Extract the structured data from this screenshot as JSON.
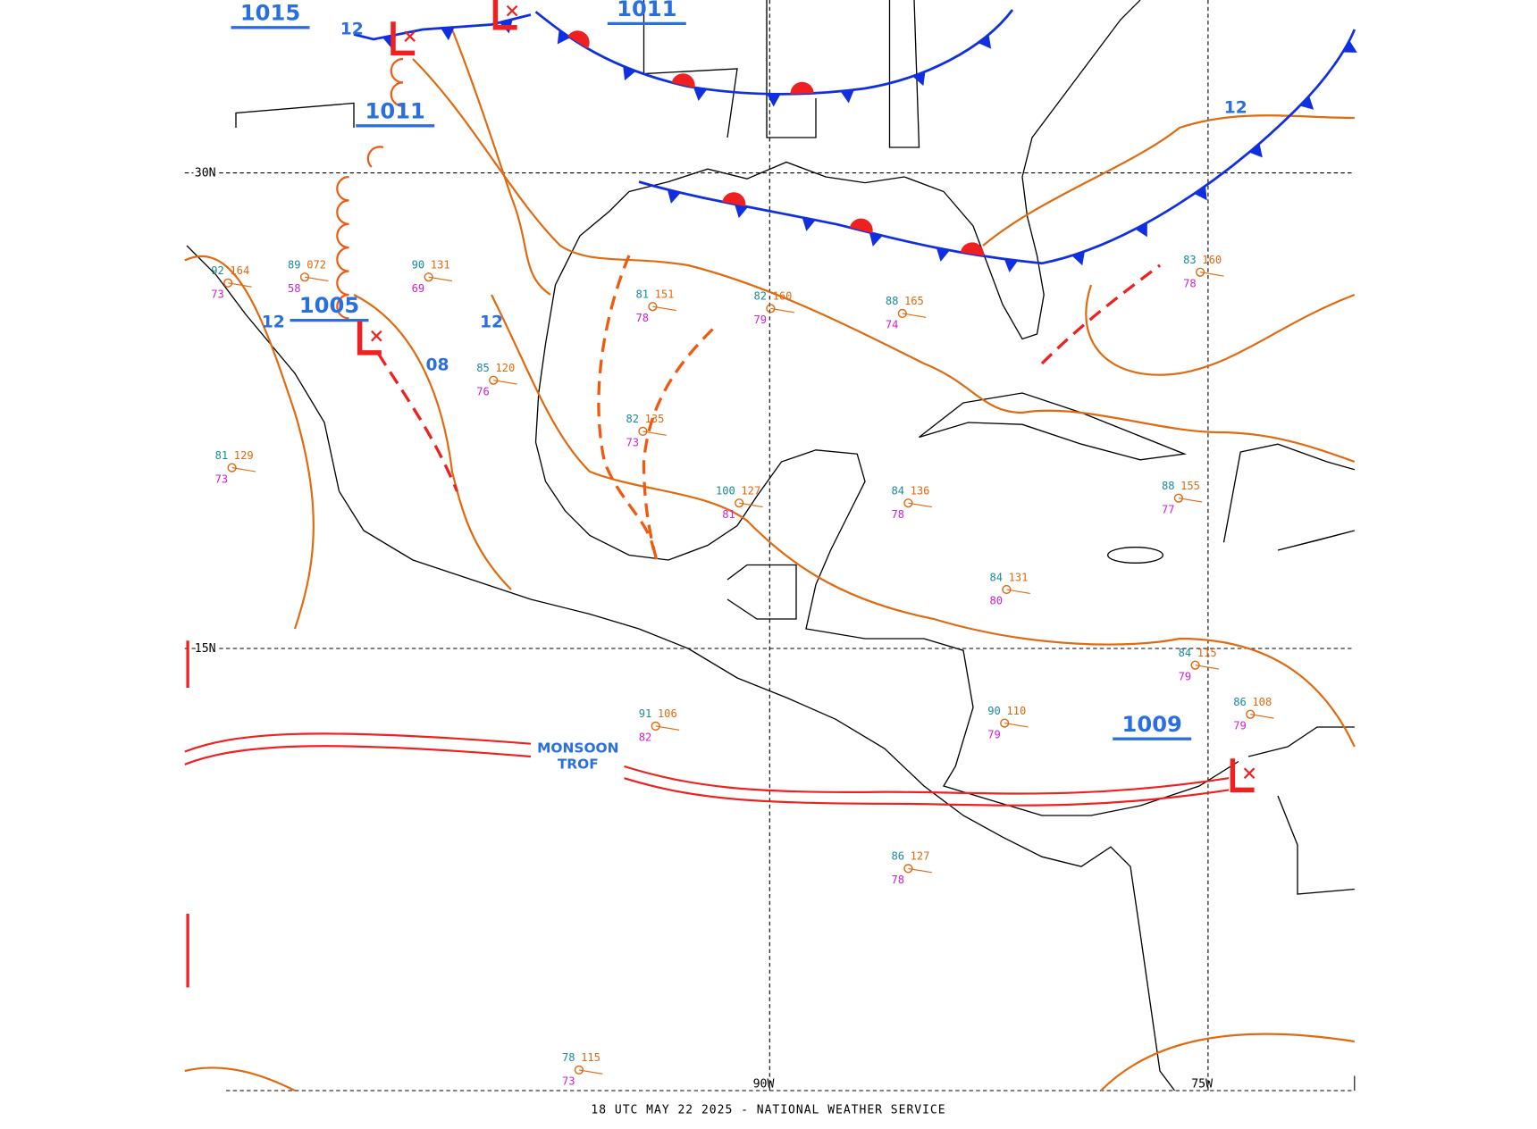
{
  "map": {
    "footer": "18 UTC MAY 22 2025 - NATIONAL WEATHER SERVICE",
    "grid_labels": {
      "lat_30": "30N",
      "lat_15": "15N",
      "lon_90": "90W",
      "lon_75": "75W"
    },
    "pressure_centers": [
      "1015",
      "1011",
      "1011",
      "1005",
      "1009"
    ],
    "isobar_labels": [
      "12",
      "12",
      "12",
      "08",
      "12"
    ],
    "feature_label": [
      "MONSOON",
      "TROF"
    ],
    "stations": [
      {
        "temp": "92",
        "dewpoint": "73",
        "pressure": "164"
      },
      {
        "temp": "89",
        "dewpoint": "58",
        "pressure": "072"
      },
      {
        "temp": "90",
        "dewpoint": "69",
        "pressure": "131"
      },
      {
        "temp": "81",
        "dewpoint": "78",
        "pressure": "151"
      },
      {
        "temp": "82",
        "dewpoint": "79",
        "pressure": "160"
      },
      {
        "temp": "88",
        "dewpoint": "74",
        "pressure": "165"
      },
      {
        "temp": "82",
        "dewpoint": "73",
        "pressure": "135"
      },
      {
        "temp": "100",
        "dewpoint": "81",
        "pressure": "127"
      },
      {
        "temp": "84",
        "dewpoint": "78",
        "pressure": "136"
      },
      {
        "temp": "88",
        "dewpoint": "77",
        "pressure": "155"
      },
      {
        "temp": "84",
        "dewpoint": "80",
        "pressure": "131"
      },
      {
        "temp": "91",
        "dewpoint": "82",
        "pressure": "106"
      },
      {
        "temp": "90",
        "dewpoint": "79",
        "pressure": "110"
      },
      {
        "temp": "86",
        "dewpoint": "78",
        "pressure": "127"
      },
      {
        "temp": "84",
        "dewpoint": "79",
        "pressure": "115"
      },
      {
        "temp": "78",
        "dewpoint": "73",
        "pressure": "115"
      },
      {
        "temp": "83",
        "dewpoint": "78",
        "pressure": "160"
      },
      {
        "temp": "86",
        "dewpoint": "79",
        "pressure": "108"
      },
      {
        "temp": "85",
        "dewpoint": "76",
        "pressure": "120"
      },
      {
        "temp": "81",
        "dewpoint": "73",
        "pressure": "129"
      }
    ]
  }
}
